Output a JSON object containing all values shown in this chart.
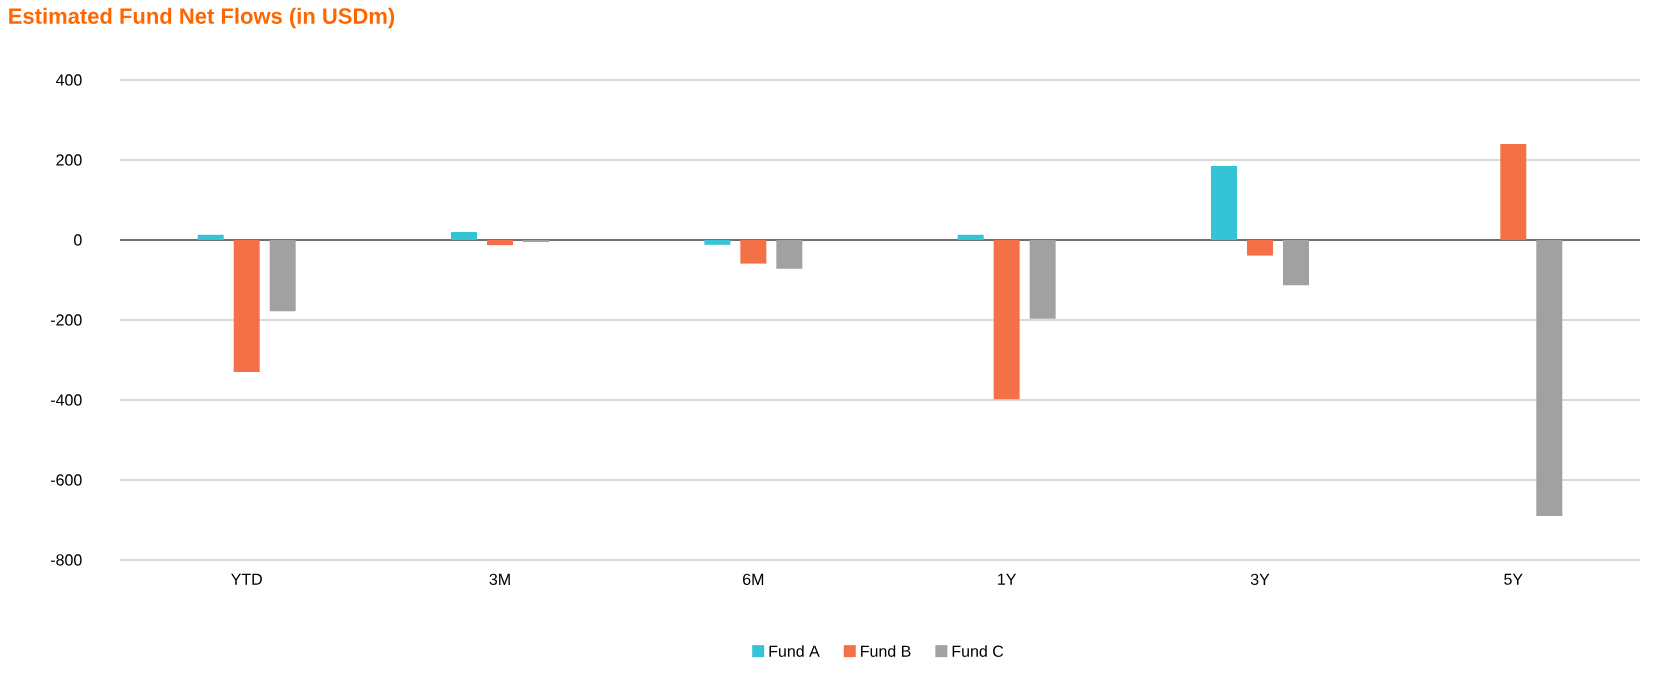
{
  "chart_data": {
    "type": "bar",
    "title": "Estimated Fund Net Flows (in USDm)",
    "categories": [
      "YTD",
      "3M",
      "6M",
      "1Y",
      "3Y",
      "5Y"
    ],
    "series": [
      {
        "name": "Fund A",
        "color": "#35c3d6",
        "values": [
          13,
          20,
          -12,
          13,
          185,
          0
        ]
      },
      {
        "name": "Fund B",
        "color": "#f47148",
        "values": [
          -330,
          -13,
          -59,
          -398,
          -39,
          240
        ]
      },
      {
        "name": "Fund C",
        "color": "#a0a1a0",
        "values": [
          -178,
          -5,
          -72,
          -197,
          -113,
          -690
        ]
      }
    ],
    "ylim": [
      -800,
      400
    ],
    "yticks": [
      -800,
      -600,
      -400,
      -200,
      0,
      200,
      400
    ],
    "grid": "y",
    "legend": "bottom"
  }
}
